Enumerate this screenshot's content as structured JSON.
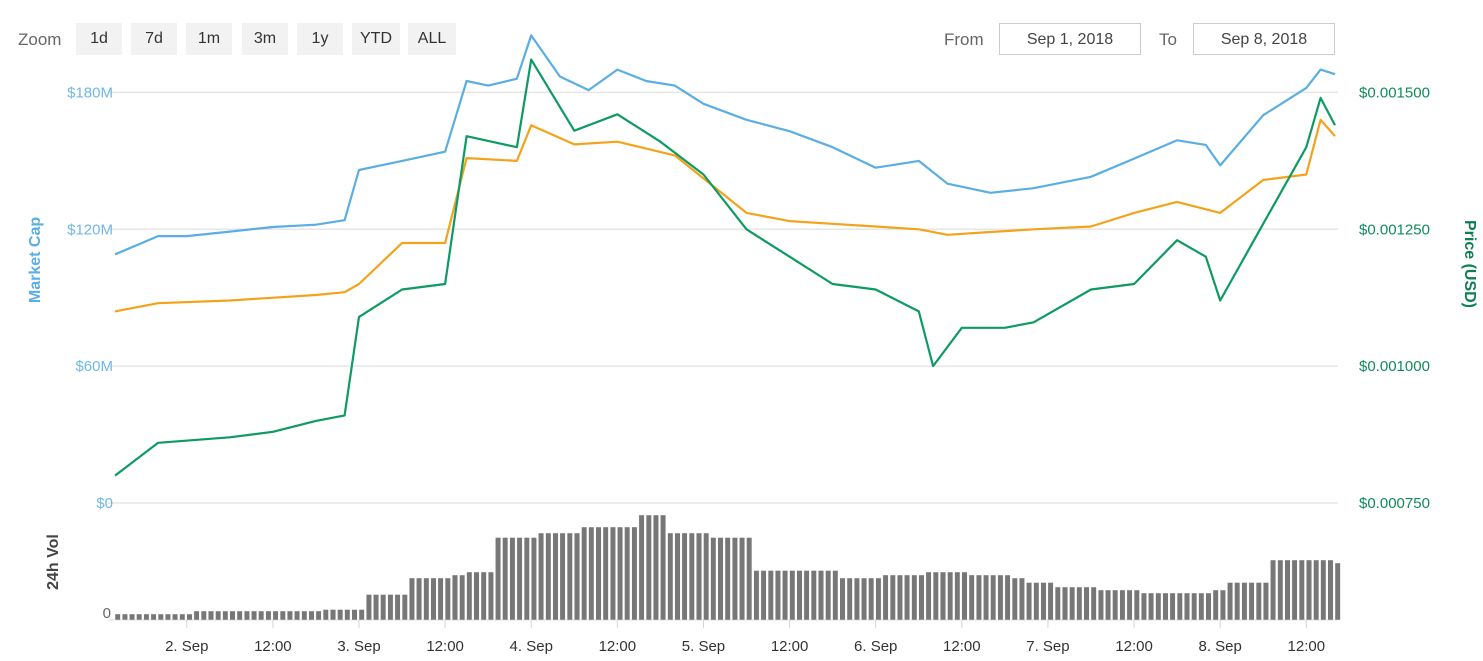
{
  "toolbar": {
    "zoom_label": "Zoom",
    "zoom_buttons": [
      "1d",
      "7d",
      "1m",
      "3m",
      "1y",
      "YTD",
      "ALL"
    ],
    "from_label": "From",
    "from_value": "Sep 1, 2018",
    "to_label": "To",
    "to_value": "Sep 8, 2018"
  },
  "colors": {
    "market_cap": "#5aaee3",
    "price_usd": "#f5a21b",
    "price_btc": "#0e9a63",
    "volume": "#777777",
    "grid": "#e6e6e6"
  },
  "chart_data": [
    {
      "type": "line",
      "x_axis": {
        "tick_labels": [
          "2. Sep",
          "12:00",
          "3. Sep",
          "12:00",
          "4. Sep",
          "12:00",
          "5. Sep",
          "12:00",
          "6. Sep",
          "12:00",
          "7. Sep",
          "12:00",
          "8. Sep",
          "12:00"
        ],
        "range": [
          "2018-09-01T14:00",
          "2018-09-08T16:00"
        ]
      },
      "y_axis_left": {
        "title": "Market Cap",
        "tick_labels": [
          "$0",
          "$60M",
          "$120M",
          "$180M"
        ],
        "range": [
          0,
          210000000
        ]
      },
      "y_axis_right": {
        "title": "Price (USD)",
        "tick_labels": [
          "$0.000750",
          "$0.001000",
          "$0.001250",
          "$0.001500"
        ]
      },
      "grid": true,
      "series": [
        {
          "color": "#5aaee3",
          "unit": "USD",
          "x": [
            "2018-09-01T14:00",
            "2018-09-01T20:00",
            "2018-09-02T00:00",
            "2018-09-02T06:00",
            "2018-09-02T12:00",
            "2018-09-02T18:00",
            "2018-09-02T22:00",
            "2018-09-03T00:00",
            "2018-09-03T06:00",
            "2018-09-03T12:00",
            "2018-09-03T15:00",
            "2018-09-03T18:00",
            "2018-09-03T22:00",
            "2018-09-04T00:00",
            "2018-09-04T04:00",
            "2018-09-04T08:00",
            "2018-09-04T12:00",
            "2018-09-04T16:00",
            "2018-09-04T20:00",
            "2018-09-05T00:00",
            "2018-09-05T06:00",
            "2018-09-05T12:00",
            "2018-09-05T18:00",
            "2018-09-06T00:00",
            "2018-09-06T06:00",
            "2018-09-06T10:00",
            "2018-09-06T16:00",
            "2018-09-06T22:00",
            "2018-09-07T06:00",
            "2018-09-07T12:00",
            "2018-09-07T18:00",
            "2018-09-07T22:00",
            "2018-09-08T00:00",
            "2018-09-08T06:00",
            "2018-09-08T12:00",
            "2018-09-08T14:00",
            "2018-09-08T16:00"
          ],
          "values": [
            109000000,
            117000000,
            117000000,
            119000000,
            121000000,
            122000000,
            124000000,
            146000000,
            150000000,
            154000000,
            185000000,
            183000000,
            186000000,
            205000000,
            187000000,
            181000000,
            190000000,
            185000000,
            183000000,
            175000000,
            168000000,
            163000000,
            156000000,
            147000000,
            150000000,
            140000000,
            136000000,
            138000000,
            143000000,
            151000000,
            159000000,
            157000000,
            148000000,
            170000000,
            182000000,
            190000000,
            188000000
          ]
        },
        {
          "color": "#f5a21b",
          "unit": "USD",
          "x": [
            "2018-09-01T14:00",
            "2018-09-01T20:00",
            "2018-09-02T06:00",
            "2018-09-02T18:00",
            "2018-09-02T22:00",
            "2018-09-03T00:00",
            "2018-09-03T06:00",
            "2018-09-03T12:00",
            "2018-09-03T15:00",
            "2018-09-03T22:00",
            "2018-09-04T00:00",
            "2018-09-04T06:00",
            "2018-09-04T12:00",
            "2018-09-04T20:00",
            "2018-09-05T06:00",
            "2018-09-05T12:00",
            "2018-09-05T18:00",
            "2018-09-06T00:00",
            "2018-09-06T06:00",
            "2018-09-06T10:00",
            "2018-09-06T16:00",
            "2018-09-06T22:00",
            "2018-09-07T06:00",
            "2018-09-07T12:00",
            "2018-09-07T18:00",
            "2018-09-08T00:00",
            "2018-09-08T06:00",
            "2018-09-08T12:00",
            "2018-09-08T14:00",
            "2018-09-08T16:00"
          ],
          "values": [
            0.0011,
            0.001115,
            0.00112,
            0.00113,
            0.001135,
            0.00115,
            0.001225,
            0.001225,
            0.00138,
            0.001375,
            0.00144,
            0.001405,
            0.00141,
            0.001385,
            0.00128,
            0.001265,
            0.00126,
            0.001255,
            0.00125,
            0.00124,
            0.001245,
            0.00125,
            0.001255,
            0.00128,
            0.0013,
            0.00128,
            0.00134,
            0.00135,
            0.00145,
            0.00142
          ]
        },
        {
          "color": "#0e9a63",
          "unit": "USD",
          "x": [
            "2018-09-01T14:00",
            "2018-09-01T20:00",
            "2018-09-02T06:00",
            "2018-09-02T12:00",
            "2018-09-02T18:00",
            "2018-09-02T22:00",
            "2018-09-03T00:00",
            "2018-09-03T06:00",
            "2018-09-03T12:00",
            "2018-09-03T15:00",
            "2018-09-03T22:00",
            "2018-09-04T00:00",
            "2018-09-04T06:00",
            "2018-09-04T12:00",
            "2018-09-04T18:00",
            "2018-09-05T00:00",
            "2018-09-05T06:00",
            "2018-09-05T12:00",
            "2018-09-05T18:00",
            "2018-09-06T00:00",
            "2018-09-06T06:00",
            "2018-09-06T08:00",
            "2018-09-06T12:00",
            "2018-09-06T18:00",
            "2018-09-06T22:00",
            "2018-09-07T06:00",
            "2018-09-07T12:00",
            "2018-09-07T18:00",
            "2018-09-07T22:00",
            "2018-09-08T00:00",
            "2018-09-08T06:00",
            "2018-09-08T12:00",
            "2018-09-08T14:00",
            "2018-09-08T16:00"
          ],
          "values": [
            0.0008,
            0.00086,
            0.00087,
            0.00088,
            0.0009,
            0.00091,
            0.00109,
            0.00114,
            0.00115,
            0.00142,
            0.0014,
            0.00156,
            0.00143,
            0.00146,
            0.00141,
            0.00135,
            0.00125,
            0.0012,
            0.00115,
            0.00114,
            0.0011,
            0.001,
            0.00107,
            0.00107,
            0.00108,
            0.00114,
            0.00115,
            0.00123,
            0.0012,
            0.00112,
            0.00126,
            0.0014,
            0.00149,
            0.00144
          ]
        }
      ]
    },
    {
      "type": "area",
      "y_axis_left": {
        "title": "24h Vol",
        "tick_labels": [
          "0"
        ]
      },
      "series": [
        {
          "color": "#777777",
          "x": [
            "2018-09-01T14:00",
            "2018-09-02T00:00",
            "2018-09-02T12:00",
            "2018-09-02T18:00",
            "2018-09-02T23:00",
            "2018-09-03T00:00",
            "2018-09-03T06:00",
            "2018-09-03T12:00",
            "2018-09-03T14:00",
            "2018-09-03T18:00",
            "2018-09-04T00:00",
            "2018-09-04T06:00",
            "2018-09-04T12:00",
            "2018-09-04T14:00",
            "2018-09-04T18:00",
            "2018-09-05T00:00",
            "2018-09-05T06:00",
            "2018-09-05T12:00",
            "2018-09-05T18:00",
            "2018-09-06T00:00",
            "2018-09-06T06:00",
            "2018-09-06T12:00",
            "2018-09-06T18:00",
            "2018-09-06T20:00",
            "2018-09-07T00:00",
            "2018-09-07T06:00",
            "2018-09-07T12:00",
            "2018-09-07T18:00",
            "2018-09-07T22:00",
            "2018-09-08T00:00",
            "2018-09-08T06:00",
            "2018-09-08T12:00",
            "2018-09-08T15:00",
            "2018-09-08T16:00"
          ],
          "values": [
            4,
            6,
            6,
            7,
            7,
            17,
            28,
            30,
            32,
            55,
            58,
            62,
            62,
            70,
            58,
            55,
            33,
            33,
            28,
            30,
            32,
            30,
            28,
            25,
            22,
            20,
            18,
            18,
            20,
            25,
            40,
            40,
            38,
            49
          ]
        }
      ]
    }
  ]
}
